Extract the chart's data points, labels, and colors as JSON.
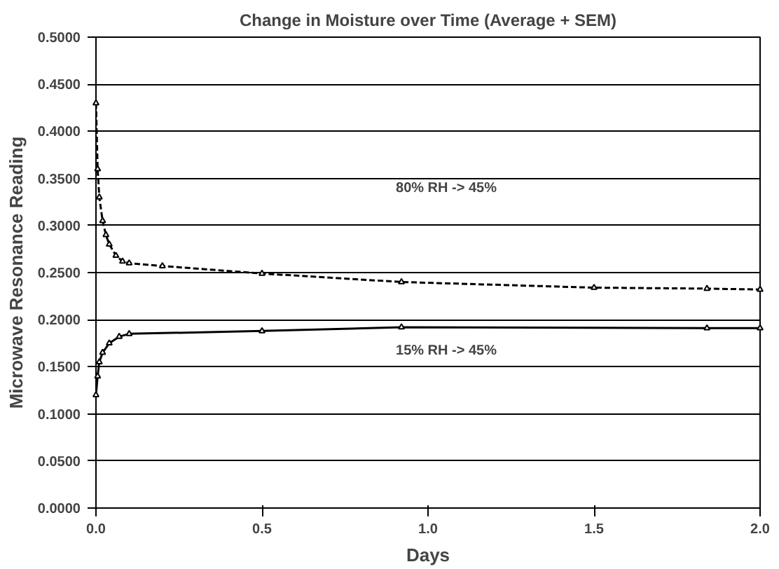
{
  "chart_data": {
    "type": "line",
    "title": "Change in Moisture over Time (Average + SEM)",
    "xlabel": "Days",
    "ylabel": "Microwave Resonance Reading",
    "xlim": [
      0,
      2.0
    ],
    "xticks": [
      {
        "value": 0,
        "label": "0.0"
      },
      {
        "value": 0.5,
        "label": "0.5"
      },
      {
        "value": 1.0,
        "label": "1.0"
      },
      {
        "value": 1.5,
        "label": "1.5"
      },
      {
        "value": 2.0,
        "label": "2.0"
      }
    ],
    "ylim": [
      0,
      0.5
    ],
    "yticks": [
      {
        "value": 0,
        "label": "0.0000"
      },
      {
        "value": 0.05,
        "label": "0.0500"
      },
      {
        "value": 0.1,
        "label": "0.1000"
      },
      {
        "value": 0.15,
        "label": "0.1500"
      },
      {
        "value": 0.2,
        "label": "0.2000"
      },
      {
        "value": 0.25,
        "label": "0.2500"
      },
      {
        "value": 0.3,
        "label": "0.3000"
      },
      {
        "value": 0.35,
        "label": "0.3500"
      },
      {
        "value": 0.4,
        "label": "0.4000"
      },
      {
        "value": 0.45,
        "label": "0.4500"
      },
      {
        "value": 0.5,
        "label": "0.5000"
      }
    ],
    "grid": "y",
    "marker": "triangle",
    "series": [
      {
        "color": "#000000",
        "line_style": "dashed",
        "x": [
          0,
          0.005,
          0.01,
          0.02,
          0.03,
          0.04,
          0.06,
          0.08,
          0.1,
          0.2,
          0.5,
          0.92,
          1.5,
          1.84,
          2.0
        ],
        "values": [
          0.43,
          0.36,
          0.33,
          0.305,
          0.29,
          0.28,
          0.268,
          0.262,
          0.26,
          0.257,
          0.249,
          0.24,
          0.234,
          0.233,
          0.232
        ]
      },
      {
        "color": "#000000",
        "line_style": "solid",
        "x": [
          0,
          0.005,
          0.01,
          0.02,
          0.04,
          0.07,
          0.1,
          0.5,
          0.92,
          1.84,
          2.0
        ],
        "values": [
          0.12,
          0.14,
          0.155,
          0.165,
          0.175,
          0.182,
          0.185,
          0.188,
          0.192,
          0.191,
          0.191
        ]
      }
    ],
    "annotations": [
      "80% RH -> 45%",
      "15% RH -> 45%"
    ]
  }
}
